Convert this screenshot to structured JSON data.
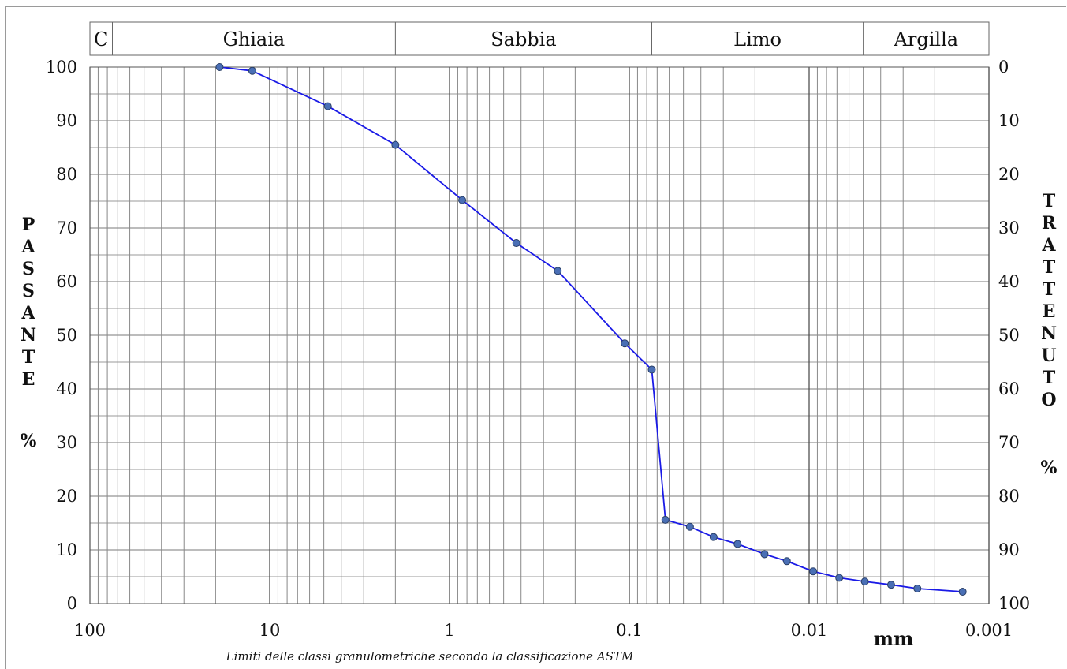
{
  "chart_data": {
    "type": "line",
    "x_scale": "log",
    "x_reversed": true,
    "xlim": [
      100,
      0.001
    ],
    "ylim": [
      0,
      100
    ],
    "x_ticks": [
      "100",
      "10",
      "1",
      "0.1",
      "0.01",
      "0.001"
    ],
    "y_left_ticks": [
      "0",
      "10",
      "20",
      "30",
      "40",
      "50",
      "60",
      "70",
      "80",
      "90",
      "100"
    ],
    "y_right_ticks": [
      "100",
      "90",
      "80",
      "70",
      "60",
      "50",
      "40",
      "30",
      "20",
      "10",
      "0"
    ],
    "ylabel_left_letters": [
      "P",
      "A",
      "S",
      "S",
      "A",
      "N",
      "T",
      "E"
    ],
    "ylabel_left_unit": "%",
    "ylabel_right_letters": [
      "T",
      "R",
      "A",
      "T",
      "T",
      "E",
      "N",
      "U",
      "T",
      "O"
    ],
    "ylabel_right_unit": "%",
    "x_unit": "mm",
    "caption": "Limiti delle classi granulometriche secondo la classificazione ASTM",
    "grid": true,
    "line_color": "#1a1ae6",
    "marker_color": "#4a6fb5",
    "classes": [
      {
        "label": "C",
        "from": 100,
        "to": 75
      },
      {
        "label": "Ghiaia",
        "from": 75,
        "to": 2
      },
      {
        "label": "Sabbia",
        "from": 2,
        "to": 0.075
      },
      {
        "label": "Limo",
        "from": 0.075,
        "to": 0.005
      },
      {
        "label": "Argilla",
        "from": 0.005,
        "to": 0.001
      }
    ],
    "series": [
      {
        "x": [
          19,
          12.5,
          4.75,
          2,
          0.85,
          0.425,
          0.25,
          0.106,
          0.075,
          0.063,
          0.046,
          0.034,
          0.025,
          0.0177,
          0.0133,
          0.0095,
          0.0068,
          0.0049,
          0.0035,
          0.0025,
          0.0014
        ],
        "y": [
          100,
          99.3,
          92.7,
          85.5,
          75.2,
          67.2,
          62,
          48.5,
          43.6,
          15.6,
          14.3,
          12.4,
          11.1,
          9.2,
          7.9,
          6,
          4.8,
          4.1,
          3.5,
          2.8,
          2.2
        ]
      }
    ]
  }
}
